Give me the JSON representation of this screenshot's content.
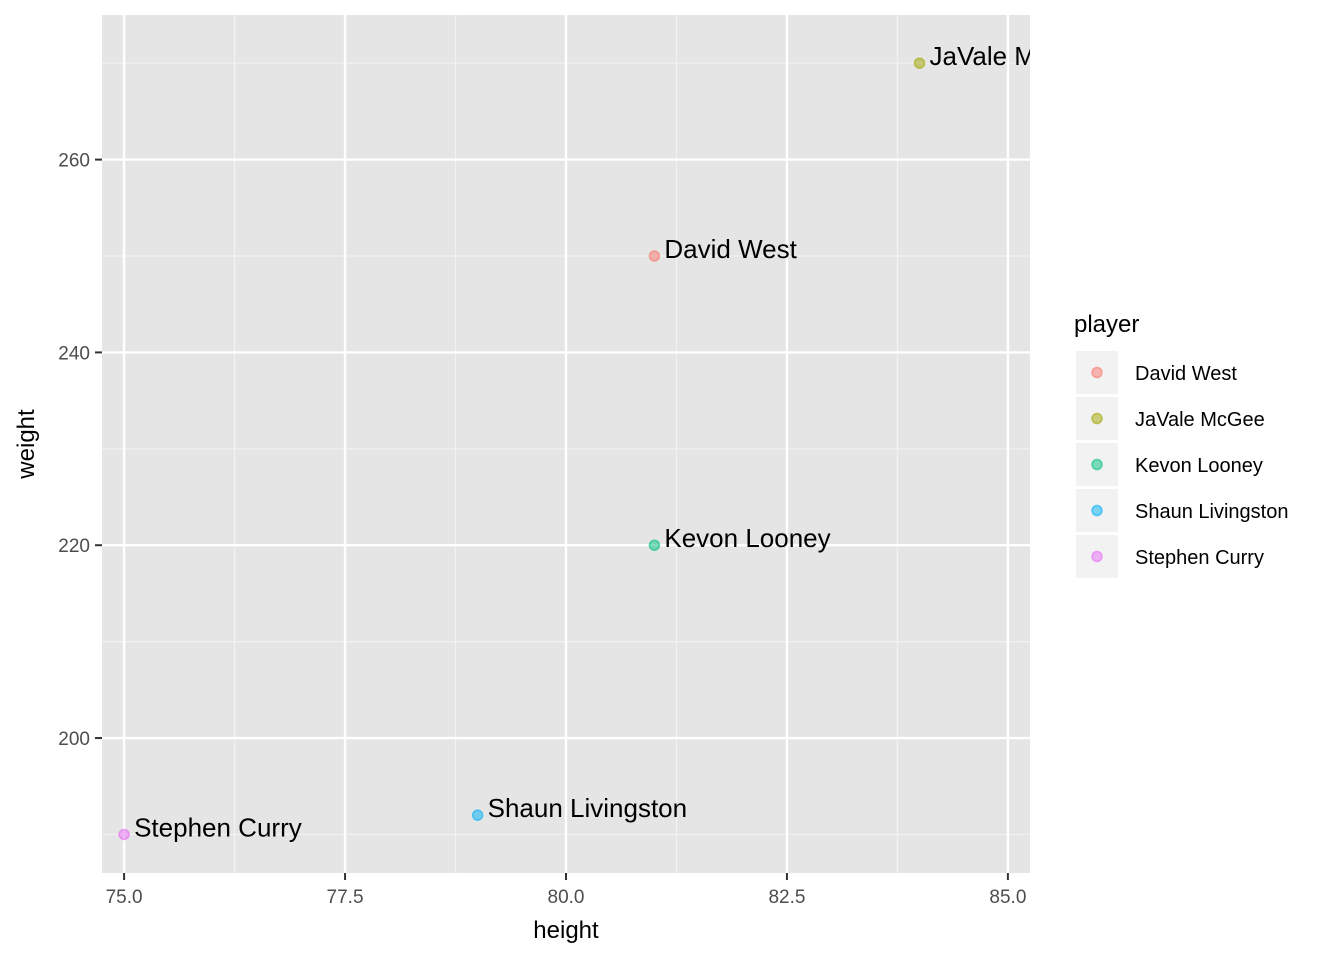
{
  "chart_data": {
    "type": "scatter",
    "title": "",
    "xlabel": "height",
    "ylabel": "weight",
    "xlim": [
      74.75,
      85.25
    ],
    "ylim": [
      186,
      275
    ],
    "x_ticks": [
      75.0,
      77.5,
      80.0,
      82.5,
      85.0
    ],
    "x_tick_labels": [
      "75.0",
      "77.5",
      "80.0",
      "82.5",
      "85.0"
    ],
    "y_ticks": [
      200,
      220,
      240,
      260
    ],
    "y_tick_labels": [
      "200",
      "220",
      "240",
      "260"
    ],
    "grid": true,
    "legend": {
      "title": "player",
      "position": "right",
      "entries": [
        "David West",
        "JaVale McGee",
        "Kevon Looney",
        "Shaun Livingston",
        "Stephen Curry"
      ]
    },
    "series": [
      {
        "name": "David West",
        "x": 81,
        "y": 250,
        "label": "David West",
        "color": "#F8766D"
      },
      {
        "name": "JaVale McGee",
        "x": 84,
        "y": 270,
        "label": "JaVale Mc",
        "color": "#A3A500"
      },
      {
        "name": "Kevon Looney",
        "x": 81,
        "y": 220,
        "label": "Kevon Looney",
        "color": "#00BF7D"
      },
      {
        "name": "Shaun Livingston",
        "x": 79,
        "y": 192,
        "label": "Shaun Livingston",
        "color": "#00B0F6"
      },
      {
        "name": "Stephen Curry",
        "x": 75,
        "y": 190,
        "label": "Stephen Curry",
        "color": "#E76BF3"
      }
    ]
  }
}
